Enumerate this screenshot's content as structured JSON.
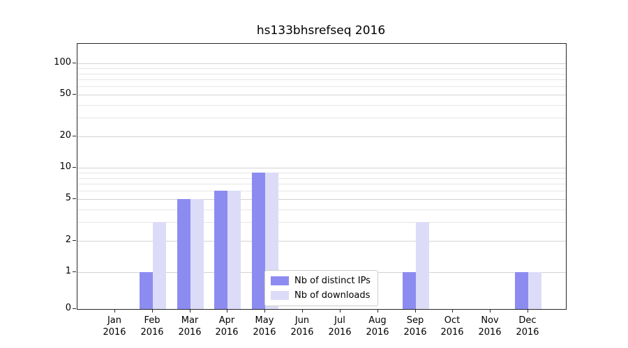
{
  "chart_data": {
    "type": "bar",
    "title": "hs133bhsrefseq 2016",
    "months": [
      "Jan",
      "Feb",
      "Mar",
      "Apr",
      "May",
      "Jun",
      "Jul",
      "Aug",
      "Sep",
      "Oct",
      "Nov",
      "Dec"
    ],
    "year": "2016",
    "series": [
      {
        "name": "Nb of distinct IPs",
        "color": "#8c8cf0",
        "values": [
          0,
          1,
          5,
          6,
          9,
          0,
          0,
          0,
          1,
          0,
          0,
          1
        ]
      },
      {
        "name": "Nb of downloads",
        "color": "#dcdcf8",
        "values": [
          0,
          3,
          5,
          6,
          9,
          0,
          0,
          0,
          3,
          0,
          0,
          1
        ]
      }
    ],
    "yscale": "symlog",
    "y_ticks": [
      0,
      1,
      2,
      5,
      10,
      20,
      50,
      100
    ],
    "y_minor_ticks": [
      3,
      4,
      6,
      7,
      8,
      9,
      30,
      40,
      60,
      70,
      80,
      90
    ],
    "ylim": [
      0,
      150
    ],
    "grid": true,
    "legend_position": "lower center"
  }
}
